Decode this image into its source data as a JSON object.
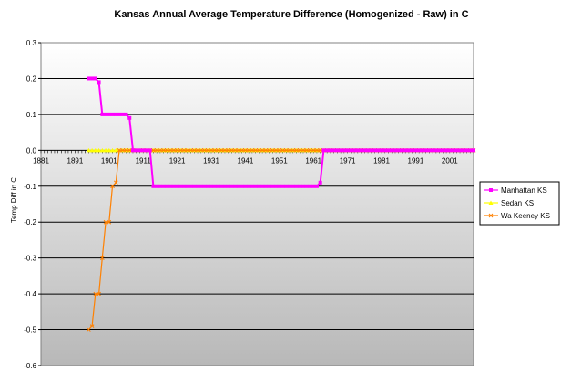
{
  "chart_data": {
    "type": "line",
    "title": "Kansas Annual Average Temperature Difference (Homogenized - Raw) in C",
    "xlabel": "",
    "ylabel": "Temp Diff in C",
    "xlim": [
      1881,
      2008
    ],
    "ylim": [
      -0.6,
      0.3
    ],
    "y_ticks": [
      0.3,
      0.2,
      0.1,
      0.0,
      -0.1,
      -0.2,
      -0.3,
      -0.4,
      -0.5,
      -0.6
    ],
    "y_tick_labels": [
      "0.3",
      "0.2",
      "0.1",
      "0.0",
      "-0.1",
      "-0.2",
      "-0.3",
      "-0.4",
      "-0.5",
      "-0.6"
    ],
    "x_ticks": [
      1881,
      1891,
      1901,
      1911,
      1921,
      1931,
      1941,
      1951,
      1961,
      1971,
      1981,
      1991,
      2001
    ],
    "x_tick_labels": [
      "1881",
      "1891",
      "1901",
      "1911",
      "1921",
      "1931",
      "1941",
      "1951",
      "1961",
      "1971",
      "1981",
      "1991",
      "2001"
    ],
    "grid": true,
    "legend_position": "right",
    "series": [
      {
        "name": "Manhattan KS",
        "color": "#ff00ff",
        "marker": "square",
        "x": [
          1895,
          1896,
          1897,
          1898,
          1899,
          1900,
          1901,
          1902,
          1903,
          1904,
          1905,
          1906,
          1907,
          1908,
          1909,
          1910,
          1911,
          1912,
          1913,
          1914,
          1915,
          1916,
          1917,
          1918,
          1919,
          1920,
          1921,
          1922,
          1923,
          1924,
          1925,
          1926,
          1927,
          1928,
          1929,
          1930,
          1931,
          1932,
          1933,
          1934,
          1935,
          1936,
          1937,
          1938,
          1939,
          1940,
          1941,
          1942,
          1943,
          1944,
          1945,
          1946,
          1947,
          1948,
          1949,
          1950,
          1951,
          1952,
          1953,
          1954,
          1955,
          1956,
          1957,
          1958,
          1959,
          1960,
          1961,
          1962,
          1963,
          1964,
          1965,
          1966,
          1967,
          1968,
          1969,
          1970,
          1971,
          1972,
          1973,
          1974,
          1975,
          1976,
          1977,
          1978,
          1979,
          1980,
          1981,
          1982,
          1983,
          1984,
          1985,
          1986,
          1987,
          1988,
          1989,
          1990,
          1991,
          1992,
          1993,
          1994,
          1995,
          1996,
          1997,
          1998,
          1999,
          2000,
          2001,
          2002,
          2003,
          2004,
          2005,
          2006,
          2007,
          2008
        ],
        "values": [
          0.2,
          0.2,
          0.2,
          0.19,
          0.1,
          0.1,
          0.1,
          0.1,
          0.1,
          0.1,
          0.1,
          0.1,
          0.09,
          0.0,
          0.0,
          0.0,
          0.0,
          0.0,
          0.0,
          -0.1,
          -0.1,
          -0.1,
          -0.1,
          -0.1,
          -0.1,
          -0.1,
          -0.1,
          -0.1,
          -0.1,
          -0.1,
          -0.1,
          -0.1,
          -0.1,
          -0.1,
          -0.1,
          -0.1,
          -0.1,
          -0.1,
          -0.1,
          -0.1,
          -0.1,
          -0.1,
          -0.1,
          -0.1,
          -0.1,
          -0.1,
          -0.1,
          -0.1,
          -0.1,
          -0.1,
          -0.1,
          -0.1,
          -0.1,
          -0.1,
          -0.1,
          -0.1,
          -0.1,
          -0.1,
          -0.1,
          -0.1,
          -0.1,
          -0.1,
          -0.1,
          -0.1,
          -0.1,
          -0.1,
          -0.1,
          -0.1,
          -0.09,
          0.0,
          0.0,
          0.0,
          0.0,
          0.0,
          0.0,
          0.0,
          0.0,
          0.0,
          0.0,
          0.0,
          0.0,
          0.0,
          0.0,
          0.0,
          0.0,
          0.0,
          0.0,
          0.0,
          0.0,
          0.0,
          0.0,
          0.0,
          0.0,
          0.0,
          0.0,
          0.0,
          0.0,
          0.0,
          0.0,
          0.0,
          0.0,
          0.0,
          0.0,
          0.0,
          0.0,
          0.0,
          0.0,
          0.0,
          0.0,
          0.0,
          0.0,
          0.0,
          0.0,
          0.0
        ]
      },
      {
        "name": "Sedan KS",
        "color": "#ffff00",
        "marker": "triangle",
        "x": [
          1895,
          1896,
          1897,
          1898,
          1899,
          1900,
          1901,
          1902,
          1903,
          1904,
          1905,
          1906,
          1907,
          1908,
          1909,
          1910,
          1911,
          1912,
          1913,
          1914,
          1915,
          1916,
          1917,
          1918,
          1919,
          1920,
          1921,
          1922,
          1923,
          1924,
          1925,
          1926,
          1927,
          1928,
          1929,
          1930,
          1931,
          1932,
          1933,
          1934,
          1935,
          1936,
          1937,
          1938,
          1939,
          1940,
          1941,
          1942,
          1943,
          1944,
          1945,
          1946,
          1947,
          1948,
          1949,
          1950,
          1951,
          1952,
          1953,
          1954,
          1955,
          1956,
          1957,
          1958,
          1959,
          1960,
          1961,
          1962,
          1963,
          1964,
          1965,
          1966,
          1967,
          1968,
          1969,
          1970,
          1971,
          1972,
          1973,
          1974,
          1975,
          1976,
          1977,
          1978,
          1979,
          1980,
          1981,
          1982,
          1983,
          1984,
          1985,
          1986,
          1987,
          1988,
          1989,
          1990,
          1991,
          1992,
          1993,
          1994,
          1995,
          1996,
          1997,
          1998,
          1999,
          2000,
          2001,
          2002,
          2003,
          2004,
          2005,
          2006,
          2007,
          2008
        ],
        "values": [
          0.0,
          0.0,
          0.0,
          0.0,
          0.0,
          0.0,
          0.0,
          0.0,
          0.0,
          0.0,
          0.0,
          0.0,
          0.0,
          0.0,
          0.0,
          0.0,
          0.0,
          0.0,
          0.0,
          0.0,
          0.0,
          0.0,
          0.0,
          0.0,
          0.0,
          0.0,
          0.0,
          0.0,
          0.0,
          0.0,
          0.0,
          0.0,
          0.0,
          0.0,
          0.0,
          0.0,
          0.0,
          0.0,
          0.0,
          0.0,
          0.0,
          0.0,
          0.0,
          0.0,
          0.0,
          0.0,
          0.0,
          0.0,
          0.0,
          0.0,
          0.0,
          0.0,
          0.0,
          0.0,
          0.0,
          0.0,
          0.0,
          0.0,
          0.0,
          0.0,
          0.0,
          0.0,
          0.0,
          0.0,
          0.0,
          0.0,
          0.0,
          0.0,
          0.0,
          0.0,
          0.0,
          0.0,
          0.0,
          0.0,
          0.0,
          0.0,
          0.0,
          0.0,
          0.0,
          0.0,
          0.0,
          0.0,
          0.0,
          0.0,
          0.0,
          0.0,
          0.0,
          0.0,
          0.0,
          0.0,
          0.0,
          0.0,
          0.0,
          0.0,
          0.0,
          0.0,
          0.0,
          0.0,
          0.0,
          0.0,
          0.0,
          0.0,
          0.0,
          0.0,
          0.0,
          0.0,
          0.0,
          0.0,
          0.0,
          0.0,
          0.0,
          0.0,
          0.0,
          0.0
        ]
      },
      {
        "name": "Wa Keeney KS",
        "color": "#ff8000",
        "marker": "cross",
        "x": [
          1895,
          1896,
          1897,
          1898,
          1899,
          1900,
          1901,
          1902,
          1903,
          1904,
          1905,
          1906,
          1907,
          1908,
          1909,
          1910,
          1911,
          1912,
          1913,
          1914,
          1915,
          1916,
          1917,
          1918,
          1919,
          1920,
          1921,
          1922,
          1923,
          1924,
          1925,
          1926,
          1927,
          1928,
          1929,
          1930,
          1931,
          1932,
          1933,
          1934,
          1935,
          1936,
          1937,
          1938,
          1939,
          1940,
          1941,
          1942,
          1943,
          1944,
          1945,
          1946,
          1947,
          1948,
          1949,
          1950,
          1951,
          1952,
          1953,
          1954,
          1955,
          1956,
          1957,
          1958,
          1959,
          1960,
          1961,
          1962,
          1963,
          1964,
          1965,
          1966,
          1967,
          1968,
          1969,
          1970,
          1971,
          1972,
          1973,
          1974,
          1975,
          1976,
          1977,
          1978,
          1979,
          1980,
          1981,
          1982,
          1983,
          1984,
          1985,
          1986,
          1987,
          1988,
          1989,
          1990,
          1991,
          1992,
          1993,
          1994,
          1995,
          1996,
          1997,
          1998,
          1999,
          2000,
          2001,
          2002,
          2003,
          2004,
          2005,
          2006,
          2007,
          2008
        ],
        "values": [
          -0.5,
          -0.49,
          -0.4,
          -0.4,
          -0.3,
          -0.2,
          -0.2,
          -0.1,
          -0.09,
          0.0,
          0.0,
          0.0,
          0.0,
          0.0,
          0.0,
          0.0,
          0.0,
          0.0,
          0.0,
          0.0,
          0.0,
          0.0,
          0.0,
          0.0,
          0.0,
          0.0,
          0.0,
          0.0,
          0.0,
          0.0,
          0.0,
          0.0,
          0.0,
          0.0,
          0.0,
          0.0,
          0.0,
          0.0,
          0.0,
          0.0,
          0.0,
          0.0,
          0.0,
          0.0,
          0.0,
          0.0,
          0.0,
          0.0,
          0.0,
          0.0,
          0.0,
          0.0,
          0.0,
          0.0,
          0.0,
          0.0,
          0.0,
          0.0,
          0.0,
          0.0,
          0.0,
          0.0,
          0.0,
          0.0,
          0.0,
          0.0,
          0.0,
          0.0,
          0.0,
          0.0,
          0.0,
          0.0,
          0.0,
          0.0,
          0.0,
          0.0,
          0.0,
          0.0,
          0.0,
          0.0,
          0.0,
          0.0,
          0.0,
          0.0,
          0.0,
          0.0,
          0.0,
          0.0,
          0.0,
          0.0,
          0.0,
          0.0,
          0.0,
          0.0,
          0.0,
          0.0,
          0.0,
          0.0,
          0.0,
          0.0,
          0.0,
          0.0,
          0.0,
          0.0,
          0.0,
          0.0,
          0.0,
          0.0,
          0.0,
          0.0,
          0.0,
          0.0,
          0.0,
          0.0
        ]
      }
    ]
  }
}
